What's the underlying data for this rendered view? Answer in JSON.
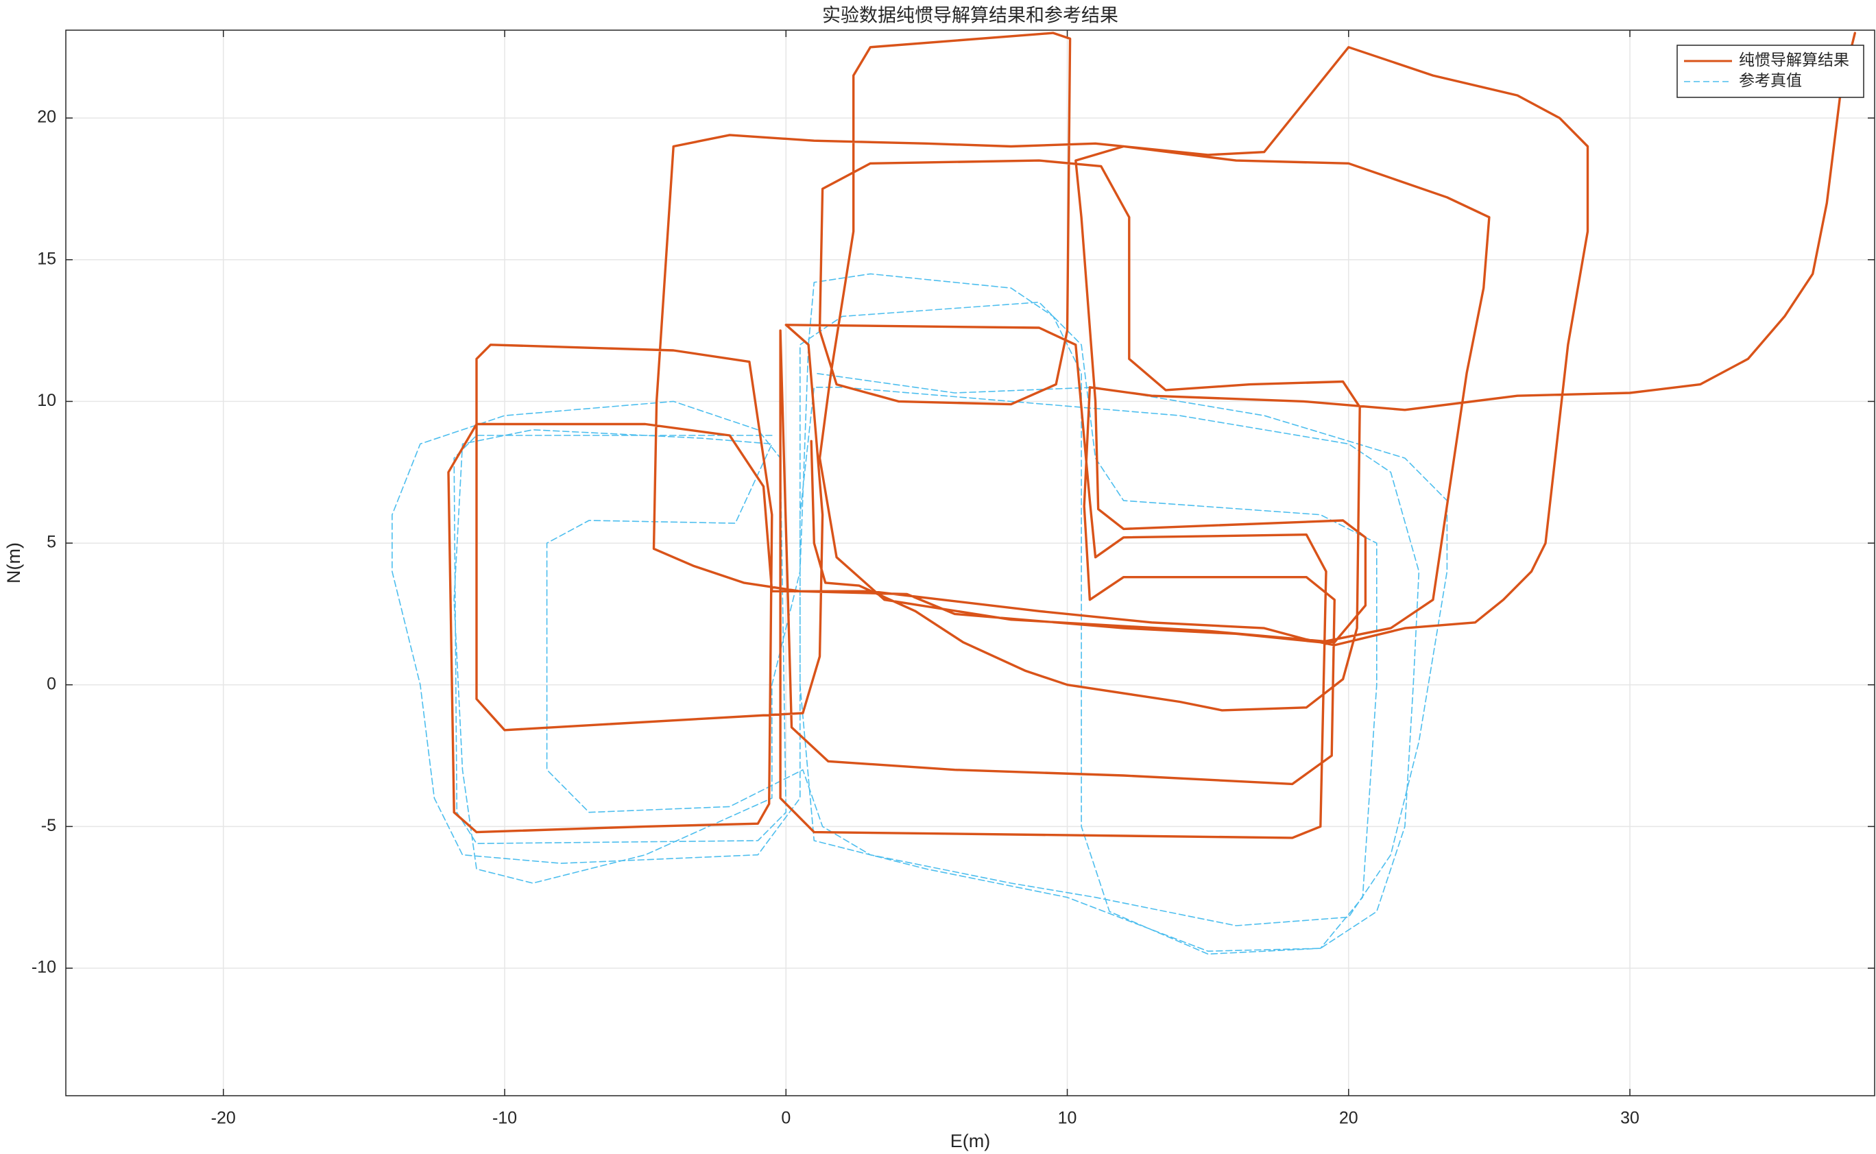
{
  "chart_data": {
    "type": "line",
    "title": "实验数据纯惯导解算结果和参考结果",
    "x_label": "E(m)",
    "y_label": "N(m)",
    "xlim": [
      -25.6,
      38.7
    ],
    "ylim": [
      -14.5,
      23.1
    ],
    "xticks": [
      -20,
      -10,
      0,
      10,
      20,
      30
    ],
    "yticks": [
      -10,
      -5,
      0,
      5,
      10,
      15,
      20
    ],
    "grid": true,
    "legend": "top-right",
    "series": [
      {
        "name": "纯惯导解算结果",
        "color": "#D95319",
        "style": "solid",
        "x": [
          0.9,
          1.0,
          1.4,
          2.6,
          4.6,
          6.3,
          8.5,
          10,
          14,
          15.5,
          18.5,
          19.8,
          20.3,
          20.4,
          19.8,
          16.5,
          13.5,
          12.2,
          12.2,
          11.2,
          9,
          3,
          1.3,
          1.2,
          1.8,
          4,
          8,
          9.6,
          10,
          10.1,
          9.5,
          3,
          2.4,
          2.4,
          1.6,
          1.2,
          1.8,
          3.5,
          8,
          15,
          19.5,
          20.6,
          20.6,
          19.8,
          12,
          11.1,
          11,
          10.5,
          10.3,
          12,
          16,
          20,
          23.5,
          25,
          24.8,
          24.2,
          23.3,
          23,
          21.5,
          19,
          16,
          12,
          6,
          4.3,
          0.5,
          -1.5,
          -3.3,
          -4.7,
          -4.6,
          -4.3,
          -4,
          -2,
          1,
          5,
          8,
          11,
          15,
          17,
          20,
          23,
          26,
          27.5,
          28.5,
          28.5,
          27.8,
          27,
          26.5,
          25.5,
          24.5,
          22,
          19.5,
          18.5,
          17,
          13,
          9,
          3,
          -0.5,
          -0.8,
          -2,
          -5,
          -11,
          -12,
          -11.8,
          -11,
          -5,
          -1,
          -0.6,
          -0.5,
          -1.3,
          -4,
          -10.5,
          -11,
          -11,
          -10,
          -3,
          0.6,
          1.2,
          1.3,
          0.8,
          0,
          9,
          10.3,
          10.8,
          11,
          12,
          18.5,
          19.2,
          19,
          18,
          1,
          -0.2,
          -0.2,
          0.2,
          1.5,
          6,
          12,
          18,
          19.4,
          19.5,
          18.5,
          12,
          10.8,
          10.6,
          10.8,
          13,
          18.4,
          22,
          26,
          30,
          32.5,
          34.2,
          35.5,
          36.5,
          37,
          37.5,
          38
        ],
        "values": [
          8.6,
          5,
          3.6,
          3.5,
          2.6,
          1.5,
          0.5,
          0,
          -0.6,
          -0.9,
          -0.8,
          0.2,
          2,
          9.8,
          10.7,
          10.6,
          10.4,
          11.5,
          16.5,
          18.3,
          18.5,
          18.4,
          17.5,
          12.5,
          10.6,
          10,
          9.9,
          10.6,
          12.5,
          22.8,
          23,
          22.5,
          21.5,
          16,
          11,
          8,
          4.5,
          3,
          2.3,
          1.9,
          1.5,
          2.8,
          5.2,
          5.8,
          5.5,
          6.2,
          10,
          16.5,
          18.5,
          19,
          18.5,
          18.4,
          17.2,
          16.5,
          14,
          11,
          5,
          3,
          2,
          1.5,
          1.8,
          2,
          2.5,
          3.2,
          3.3,
          3.6,
          4.2,
          4.8,
          10,
          14.5,
          19,
          19.4,
          19.2,
          19.1,
          19,
          19.1,
          18.7,
          18.8,
          22.5,
          21.5,
          20.8,
          20,
          19,
          16,
          12,
          5,
          4,
          3,
          2.2,
          2,
          1.4,
          1.6,
          2,
          2.2,
          2.6,
          3.3,
          3.3,
          7,
          8.8,
          9.2,
          9.2,
          7.5,
          -4.5,
          -5.2,
          -5,
          -4.9,
          -4.2,
          6,
          11.4,
          11.8,
          12,
          11.5,
          -0.5,
          -1.6,
          -1.2,
          -1,
          1,
          6,
          12,
          12.7,
          12.6,
          12,
          6.5,
          4.5,
          5.2,
          5.3,
          4,
          -5,
          -5.4,
          -5.2,
          -4,
          12.5,
          -1.5,
          -2.7,
          -3,
          -3.2,
          -3.5,
          -2.5,
          3,
          3.8,
          3.8,
          3,
          6.3,
          10.5,
          10.2,
          10,
          9.7,
          10.2,
          10.3,
          10.6,
          11.5,
          13,
          14.5,
          17,
          21,
          23
        ]
      },
      {
        "name": "参考真值",
        "color": "#4DBEEE",
        "style": "dashed",
        "x": [
          -0.5,
          -11,
          -11.8,
          -11.7,
          -11,
          -1,
          0,
          -0.2,
          -1,
          -4,
          -10,
          -13,
          -14,
          -14,
          -13,
          -12.5,
          -11.5,
          -8,
          -1,
          0.5,
          0.5,
          1,
          2,
          8,
          14,
          20,
          21.5,
          22.5,
          22.3,
          22,
          21,
          19,
          15,
          10,
          5,
          1,
          0.5,
          0.5,
          2,
          9,
          10.5,
          11,
          12,
          19,
          21,
          21,
          20.5,
          19,
          15,
          11.5,
          10.5,
          10.5,
          9.5,
          8,
          3,
          1,
          0.8,
          0.5,
          -0.5,
          -0.5,
          -5,
          -9,
          -11,
          -11.5,
          -11.8,
          -11.5,
          -9,
          -3,
          -0.5,
          -1.8,
          -7,
          -8.5,
          -8.5,
          -7,
          -2,
          0.6,
          1.3,
          3,
          8,
          11,
          16,
          20,
          21.5,
          22.5,
          23.5,
          23.5,
          22,
          17,
          11,
          6,
          1
        ],
        "values": [
          8.8,
          8.8,
          8,
          -4.5,
          -5.6,
          -5.5,
          -4.5,
          8,
          9,
          10,
          9.5,
          8.5,
          6,
          4,
          0,
          -4,
          -6,
          -6.3,
          -6,
          -4,
          6,
          10.5,
          10.5,
          10,
          9.5,
          8.5,
          7.5,
          4,
          0,
          -5,
          -8,
          -9.3,
          -9.4,
          -7.5,
          -6.5,
          -5.5,
          0,
          12,
          13,
          13.5,
          12,
          8,
          6.5,
          6,
          5,
          0,
          -7.5,
          -9.3,
          -9.5,
          -8,
          -5,
          11,
          13,
          14,
          14.5,
          14.2,
          12,
          4,
          0,
          -4,
          -6,
          -7,
          -6.5,
          -3,
          3,
          8.5,
          9,
          8.7,
          8.5,
          5.7,
          5.8,
          5,
          -3,
          -4.5,
          -4.3,
          -3,
          -5,
          -6,
          -7,
          -7.5,
          -8.5,
          -8.2,
          -6,
          -2,
          4,
          6.5,
          8,
          9.5,
          10.5,
          10.3,
          11
        ]
      }
    ]
  }
}
